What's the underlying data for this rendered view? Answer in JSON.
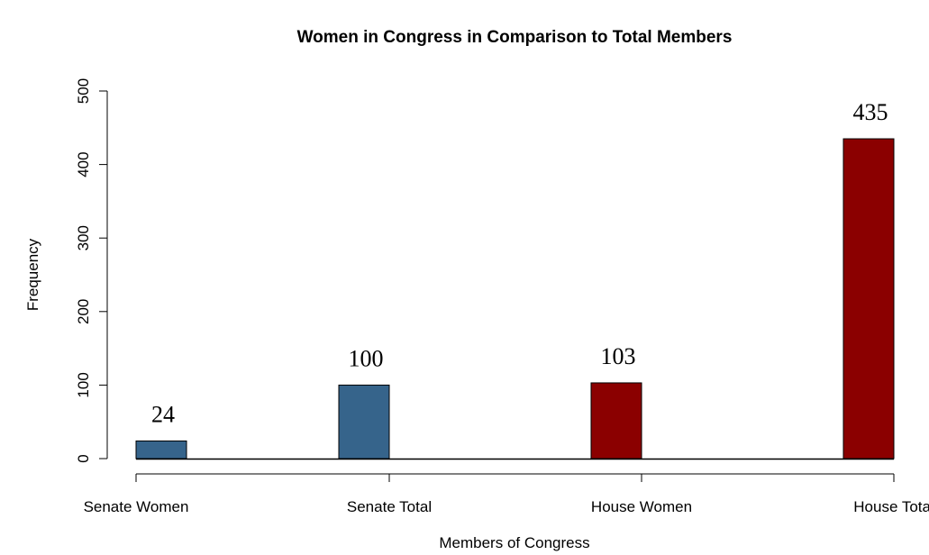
{
  "chart_data": {
    "type": "bar",
    "title": "Women in Congress in Comparison to Total Members",
    "xlabel": "Members of Congress",
    "ylabel": "Frequency",
    "categories": [
      "Senate Women",
      "Senate Total",
      "House Women",
      "House Total"
    ],
    "values": [
      24,
      100,
      103,
      435
    ],
    "data_labels": [
      "24",
      "100",
      "103",
      "435"
    ],
    "colors": [
      "#36648b",
      "#36648b",
      "#8b0000",
      "#8b0000"
    ],
    "ylim": [
      0,
      500
    ],
    "yticks": [
      0,
      100,
      200,
      300,
      400,
      500
    ],
    "ytick_labels": [
      "0",
      "100",
      "200",
      "300",
      "400",
      "500"
    ],
    "grid": false,
    "legend": "none"
  }
}
